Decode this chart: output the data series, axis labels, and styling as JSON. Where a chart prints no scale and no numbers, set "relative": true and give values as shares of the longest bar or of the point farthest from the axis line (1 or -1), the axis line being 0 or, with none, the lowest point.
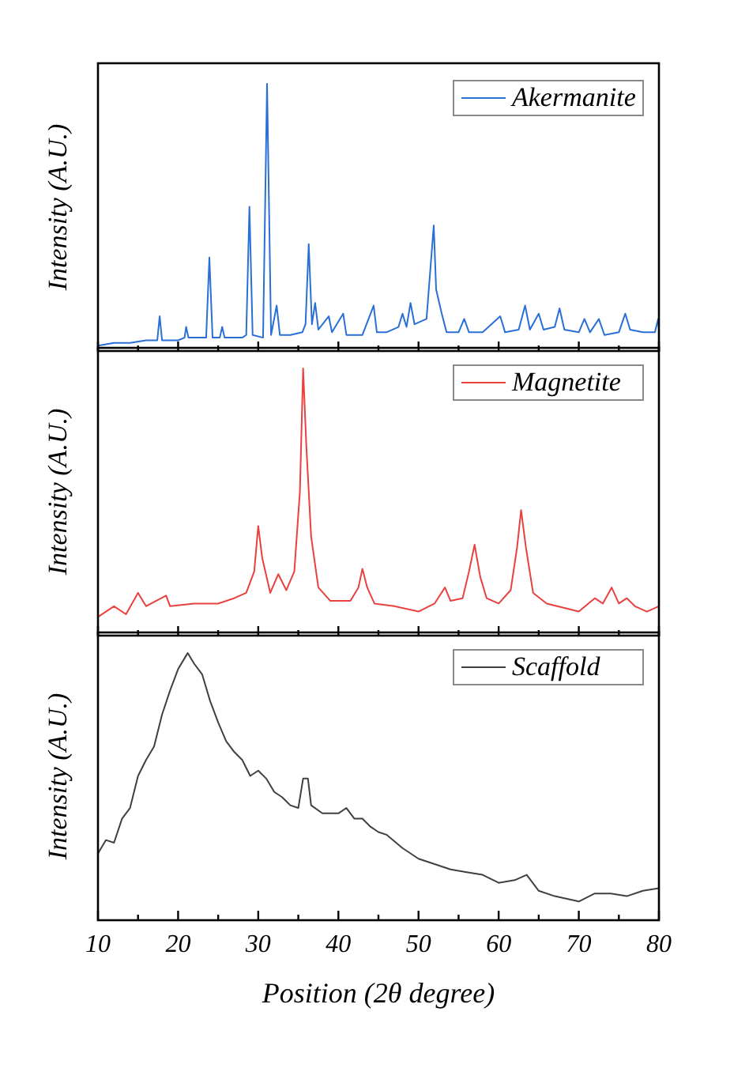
{
  "chart_data": [
    {
      "type": "line",
      "ylabel": "Intensity (A.U.)",
      "relative": true,
      "legend": "top right",
      "tick_labels": false,
      "xlim": [
        10,
        80
      ],
      "xticks": [
        10,
        {
          "value": 15,
          "label": null
        },
        20,
        {
          "value": 25,
          "label": null
        },
        30,
        {
          "value": 35,
          "label": null
        },
        40,
        {
          "value": 45,
          "label": null
        },
        50,
        {
          "value": 55,
          "label": null
        },
        60,
        {
          "value": 65,
          "label": null
        },
        70,
        {
          "value": 75,
          "label": null
        },
        80
      ],
      "series": [
        {
          "name": "Akermanite",
          "color": "#2a6fd6",
          "x": [
            10,
            12,
            14,
            16,
            17.4,
            17.7,
            18,
            20,
            20.8,
            21,
            21.3,
            23.5,
            23.9,
            24.3,
            25.2,
            25.5,
            25.8,
            28,
            28.5,
            28.9,
            29.3,
            30.6,
            31.1,
            31.6,
            32.3,
            32.7,
            34,
            35.5,
            35.9,
            36.3,
            36.7,
            37.1,
            37.5,
            38.8,
            39.2,
            40.6,
            41,
            43,
            44.4,
            44.8,
            46,
            47.5,
            48,
            48.5,
            49,
            49.5,
            51,
            51.9,
            52.2,
            52.9,
            53.5,
            55,
            55.7,
            56.3,
            58,
            60.2,
            60.8,
            62.5,
            63.3,
            63.9,
            65,
            65.6,
            67,
            67.6,
            68.2,
            70,
            70.7,
            71.4,
            72.5,
            73.2,
            75,
            75.8,
            76.4,
            78,
            79.5,
            79.9,
            80
          ],
          "values": [
            0.02,
            0.03,
            0.03,
            0.04,
            0.04,
            0.13,
            0.04,
            0.04,
            0.05,
            0.09,
            0.05,
            0.05,
            0.35,
            0.05,
            0.05,
            0.09,
            0.05,
            0.05,
            0.06,
            0.54,
            0.06,
            0.05,
            1,
            0.06,
            0.17,
            0.06,
            0.06,
            0.07,
            0.1,
            0.4,
            0.1,
            0.18,
            0.08,
            0.13,
            0.07,
            0.14,
            0.06,
            0.06,
            0.17,
            0.07,
            0.07,
            0.09,
            0.14,
            0.09,
            0.18,
            0.1,
            0.12,
            0.47,
            0.23,
            0.14,
            0.07,
            0.07,
            0.12,
            0.07,
            0.07,
            0.13,
            0.07,
            0.08,
            0.17,
            0.08,
            0.14,
            0.08,
            0.09,
            0.16,
            0.08,
            0.07,
            0.12,
            0.07,
            0.12,
            0.06,
            0.07,
            0.14,
            0.08,
            0.07,
            0.07,
            0.12,
            0.08
          ]
        }
      ]
    },
    {
      "type": "line",
      "ylabel": "Intensity (A.U.)",
      "relative": true,
      "legend": "top right",
      "tick_labels": false,
      "xlim": [
        10,
        80
      ],
      "xticks": [
        10,
        {
          "value": 15,
          "label": null
        },
        20,
        {
          "value": 25,
          "label": null
        },
        30,
        {
          "value": 35,
          "label": null
        },
        40,
        {
          "value": 45,
          "label": null
        },
        50,
        {
          "value": 55,
          "label": null
        },
        60,
        {
          "value": 65,
          "label": null
        },
        70,
        {
          "value": 75,
          "label": null
        },
        80
      ],
      "series": [
        {
          "name": "Magnetite",
          "color": "#e8413f",
          "x": [
            10,
            12,
            13.5,
            15,
            16,
            18.5,
            19,
            22,
            25,
            27,
            28.5,
            29.5,
            30,
            30.5,
            31.5,
            32.5,
            33.5,
            34.5,
            35.2,
            35.6,
            36,
            36.6,
            37.5,
            39,
            41.5,
            42.5,
            43,
            43.6,
            44.5,
            47,
            50,
            52,
            53.3,
            54,
            55.5,
            56.3,
            57,
            57.7,
            58.5,
            60,
            61.5,
            62.3,
            62.8,
            63.4,
            64.3,
            66,
            70,
            72,
            73,
            74.1,
            75,
            76,
            77,
            78.5,
            80
          ],
          "values": [
            0.07,
            0.11,
            0.08,
            0.16,
            0.11,
            0.15,
            0.11,
            0.12,
            0.12,
            0.14,
            0.16,
            0.24,
            0.41,
            0.29,
            0.16,
            0.23,
            0.17,
            0.24,
            0.54,
            1,
            0.71,
            0.37,
            0.18,
            0.13,
            0.13,
            0.18,
            0.25,
            0.18,
            0.12,
            0.11,
            0.09,
            0.12,
            0.18,
            0.13,
            0.14,
            0.24,
            0.34,
            0.22,
            0.14,
            0.12,
            0.17,
            0.33,
            0.47,
            0.33,
            0.16,
            0.12,
            0.09,
            0.14,
            0.12,
            0.18,
            0.12,
            0.14,
            0.11,
            0.09,
            0.11
          ]
        }
      ]
    },
    {
      "type": "line",
      "ylabel": "Intensity (A.U.)",
      "xlabel": "Position (2θ degree)",
      "relative": true,
      "legend": "top right",
      "tick_labels": "x",
      "xlim": [
        10,
        80
      ],
      "xticks": [
        10,
        {
          "value": 15,
          "label": null
        },
        20,
        {
          "value": 25,
          "label": null
        },
        30,
        {
          "value": 35,
          "label": null
        },
        40,
        {
          "value": 45,
          "label": null
        },
        50,
        {
          "value": 55,
          "label": null
        },
        60,
        {
          "value": 65,
          "label": null
        },
        70,
        {
          "value": 75,
          "label": null
        },
        80
      ],
      "series": [
        {
          "name": "Scaffold",
          "color": "#404040",
          "x": [
            10,
            11,
            12,
            13,
            14,
            15,
            16,
            17,
            18,
            19,
            20,
            21,
            21.2,
            22,
            23,
            24,
            25,
            26,
            27,
            28,
            29,
            30,
            31,
            32,
            33,
            34,
            35,
            35.6,
            36.2,
            36.6,
            38,
            40,
            41,
            42,
            43,
            44,
            45,
            46,
            48,
            50,
            52,
            54,
            56,
            58,
            60,
            62,
            63.5,
            65,
            67,
            70,
            72,
            74,
            76,
            78,
            80
          ],
          "values": [
            0.25,
            0.3,
            0.29,
            0.38,
            0.42,
            0.54,
            0.6,
            0.65,
            0.77,
            0.86,
            0.94,
            0.99,
            1,
            0.96,
            0.92,
            0.82,
            0.74,
            0.67,
            0.63,
            0.6,
            0.54,
            0.56,
            0.53,
            0.48,
            0.46,
            0.43,
            0.42,
            0.53,
            0.53,
            0.43,
            0.4,
            0.4,
            0.42,
            0.38,
            0.38,
            0.35,
            0.33,
            0.32,
            0.27,
            0.23,
            0.21,
            0.19,
            0.18,
            0.17,
            0.14,
            0.15,
            0.17,
            0.11,
            0.09,
            0.07,
            0.1,
            0.1,
            0.09,
            0.11,
            0.12
          ]
        }
      ]
    }
  ]
}
